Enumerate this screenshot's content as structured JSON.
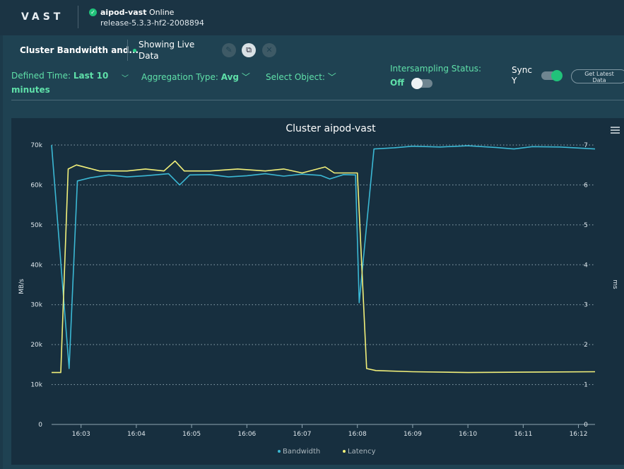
{
  "header": {
    "logo": "VAST",
    "cluster_name": "aipod-vast",
    "status": "Online",
    "release": "release-5.3.3-hf2-2008894"
  },
  "panel": {
    "title": "Cluster Bandwidth and...",
    "live_label": "Showing Live Data",
    "icons": [
      "edit-icon",
      "copy-icon",
      "close-icon"
    ],
    "defined_time_label": "Defined Time:",
    "defined_time_value": "Last 10",
    "defined_time_value2": "minutes",
    "aggregation_label": "Aggregation Type:",
    "aggregation_value": "Avg",
    "select_object_label": "Select Object:",
    "intersampling_label": "Intersampling Status:",
    "intersampling_value": "Off",
    "intersampling_on": false,
    "sync_label": "Sync",
    "sync_label2": "Y",
    "sync_on": true,
    "get_latest_label": "Get Latest",
    "get_latest_label2": "Data"
  },
  "colors": {
    "accent": "#5fe0a9",
    "bandwidth": "#3bb8d4",
    "latency": "#f2f07a",
    "online": "#21c27a"
  },
  "chart_data": {
    "type": "line",
    "title": "Cluster aipod-vast",
    "ylabel": "MB/s",
    "y2label": "ms",
    "ylim": [
      0,
      70000
    ],
    "y2lim": [
      0,
      7
    ],
    "xlim": [
      "16:02:28",
      "16:12:18"
    ],
    "yticks": [
      "0",
      "10k",
      "20k",
      "30k",
      "40k",
      "50k",
      "60k",
      "70k"
    ],
    "y2ticks": [
      "0",
      "1",
      "2",
      "3",
      "4",
      "5",
      "6",
      "7"
    ],
    "xticks": [
      "16:03",
      "16:04",
      "16:05",
      "16:06",
      "16:07",
      "16:08",
      "16:09",
      "16:10",
      "16:11",
      "16:12"
    ],
    "grid": true,
    "legend": "bottom",
    "series": [
      {
        "name": "Bandwidth",
        "axis": "left",
        "points": [
          [
            "16:02:28",
            70000
          ],
          [
            "16:02:47",
            14000
          ],
          [
            "16:02:56",
            61000
          ],
          [
            "16:03:10",
            61800
          ],
          [
            "16:03:30",
            62500
          ],
          [
            "16:03:50",
            62000
          ],
          [
            "16:04:10",
            62300
          ],
          [
            "16:04:35",
            62800
          ],
          [
            "16:04:47",
            60000
          ],
          [
            "16:04:58",
            62500
          ],
          [
            "16:05:20",
            62600
          ],
          [
            "16:05:40",
            62000
          ],
          [
            "16:06:00",
            62300
          ],
          [
            "16:06:20",
            62800
          ],
          [
            "16:06:40",
            62200
          ],
          [
            "16:07:00",
            62700
          ],
          [
            "16:07:20",
            62400
          ],
          [
            "16:07:30",
            61500
          ],
          [
            "16:07:45",
            62600
          ],
          [
            "16:07:58",
            62500
          ],
          [
            "16:08:02",
            30500
          ],
          [
            "16:08:10",
            50000
          ],
          [
            "16:08:18",
            69000
          ],
          [
            "16:08:40",
            69300
          ],
          [
            "16:09:00",
            69700
          ],
          [
            "16:09:30",
            69500
          ],
          [
            "16:10:00",
            69800
          ],
          [
            "16:10:30",
            69400
          ],
          [
            "16:10:50",
            69000
          ],
          [
            "16:11:10",
            69600
          ],
          [
            "16:11:40",
            69500
          ],
          [
            "16:12:18",
            69000
          ]
        ]
      },
      {
        "name": "Latency",
        "axis": "right",
        "points": [
          [
            "16:02:28",
            1.3
          ],
          [
            "16:02:38",
            1.3
          ],
          [
            "16:02:46",
            6.4
          ],
          [
            "16:02:55",
            6.5
          ],
          [
            "16:03:20",
            6.35
          ],
          [
            "16:03:50",
            6.35
          ],
          [
            "16:04:10",
            6.4
          ],
          [
            "16:04:30",
            6.35
          ],
          [
            "16:04:42",
            6.6
          ],
          [
            "16:04:52",
            6.35
          ],
          [
            "16:05:20",
            6.35
          ],
          [
            "16:05:50",
            6.4
          ],
          [
            "16:06:20",
            6.35
          ],
          [
            "16:06:40",
            6.4
          ],
          [
            "16:07:00",
            6.3
          ],
          [
            "16:07:25",
            6.45
          ],
          [
            "16:07:35",
            6.3
          ],
          [
            "16:08:00",
            6.3
          ],
          [
            "16:08:10",
            1.4
          ],
          [
            "16:08:20",
            1.35
          ],
          [
            "16:09:00",
            1.32
          ],
          [
            "16:10:00",
            1.3
          ],
          [
            "16:11:00",
            1.31
          ],
          [
            "16:12:18",
            1.32
          ]
        ]
      }
    ]
  }
}
